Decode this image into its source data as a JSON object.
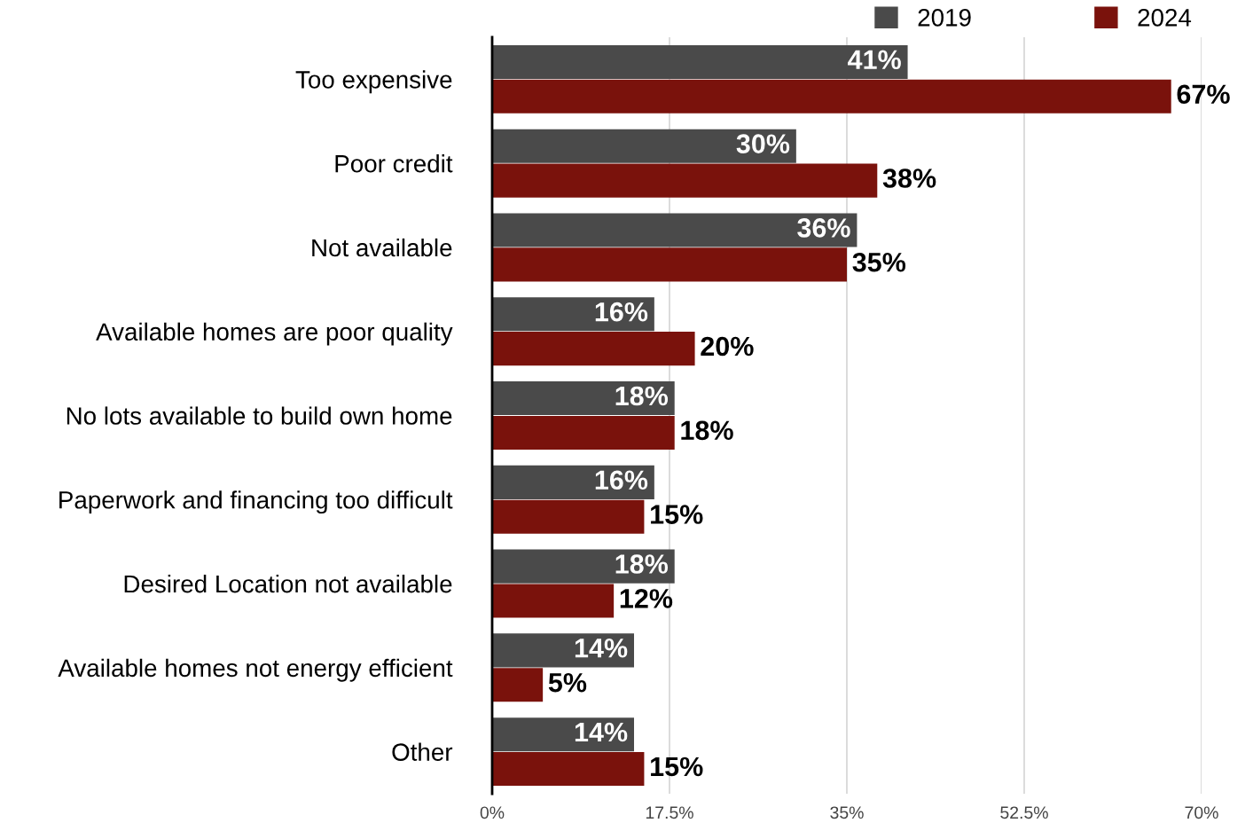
{
  "chart_data": {
    "type": "bar",
    "orientation": "horizontal",
    "categories": [
      "Too expensive",
      "Poor credit",
      "Not available",
      "Available homes are poor quality",
      "No lots available to build own home",
      "Paperwork and financing too difficult",
      "Desired Location not available",
      "Available homes not energy efficient",
      "Other"
    ],
    "series": [
      {
        "name": "2019",
        "color": "#4a4a4a",
        "values": [
          41,
          30,
          36,
          16,
          18,
          16,
          18,
          14,
          14
        ],
        "value_labels": [
          "41%",
          "30%",
          "36%",
          "16%",
          "18%",
          "16%",
          "18%",
          "14%",
          "14%"
        ]
      },
      {
        "name": "2024",
        "color": "#7a120c",
        "values": [
          67,
          38,
          35,
          20,
          18,
          15,
          12,
          5,
          15
        ],
        "value_labels": [
          "67%",
          "38%",
          "35%",
          "20%",
          "18%",
          "15%",
          "12%",
          "5%",
          "15%"
        ]
      }
    ],
    "xlim": [
      0,
      70
    ],
    "xticks": [
      {
        "value": 0,
        "label": "0%"
      },
      {
        "value": 17.5,
        "label": "17.5%"
      },
      {
        "value": 35,
        "label": "35%"
      },
      {
        "value": 52.5,
        "label": "52.5%"
      },
      {
        "value": 70,
        "label": "70%"
      }
    ],
    "grid": "x",
    "legend": "top right"
  }
}
